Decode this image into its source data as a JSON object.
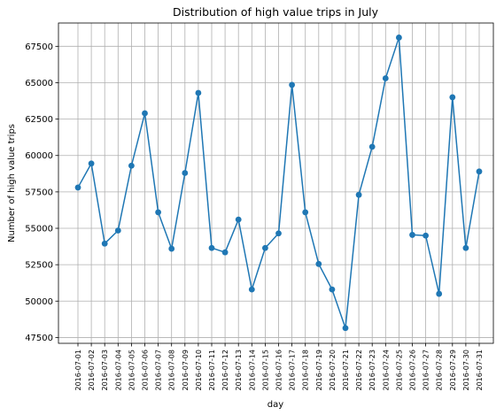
{
  "chart_data": {
    "type": "line",
    "title": "Distribution of high value trips in July",
    "xlabel": "day",
    "ylabel": "Number of high value trips",
    "categories": [
      "2016-07-01",
      "2016-07-02",
      "2016-07-03",
      "2016-07-04",
      "2016-07-05",
      "2016-07-06",
      "2016-07-07",
      "2016-07-08",
      "2016-07-09",
      "2016-07-10",
      "2016-07-11",
      "2016-07-12",
      "2016-07-13",
      "2016-07-14",
      "2016-07-15",
      "2016-07-16",
      "2016-07-17",
      "2016-07-18",
      "2016-07-19",
      "2016-07-20",
      "2016-07-21",
      "2016-07-22",
      "2016-07-23",
      "2016-07-24",
      "2016-07-25",
      "2016-07-26",
      "2016-07-27",
      "2016-07-28",
      "2016-07-29",
      "2016-07-30",
      "2016-07-31"
    ],
    "values": [
      57800,
      59450,
      53950,
      54850,
      59300,
      62900,
      56100,
      53600,
      58800,
      64300,
      53650,
      53350,
      55600,
      50800,
      53650,
      54650,
      64850,
      56100,
      52550,
      50800,
      48150,
      57300,
      60600,
      65300,
      68100,
      54550,
      54500,
      50500,
      64000,
      53650,
      58900
    ],
    "yticks": [
      47500,
      50000,
      52500,
      55000,
      57500,
      60000,
      62500,
      65000,
      67500
    ],
    "ylim": [
      47100,
      69100
    ],
    "grid": true,
    "color": "#1f77b4"
  }
}
